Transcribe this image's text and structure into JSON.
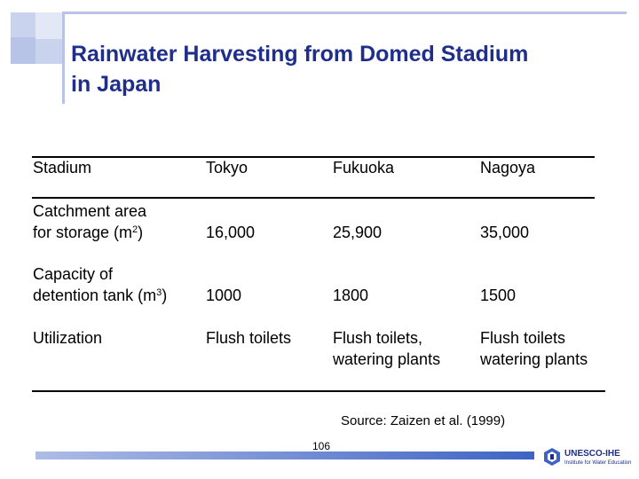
{
  "slide": {
    "title_line1": "Rainwater Harvesting from Domed Stadium",
    "title_line2": "in Japan"
  },
  "table": {
    "headers": [
      "Stadium",
      "Tokyo",
      "Fukuoka",
      "Nagoya"
    ],
    "rows": [
      {
        "label_line1": "Catchment area",
        "label_line2_prefix": "for storage (m",
        "label_line2_sup": "2",
        "label_line2_suffix": ")",
        "values": [
          "16,000",
          "25,900",
          "35,000"
        ]
      },
      {
        "label_line1": "Capacity of",
        "label_line2_prefix": "detention tank (m",
        "label_line2_sup": "3",
        "label_line2_suffix": ")",
        "values": [
          "1000",
          "1800",
          "1500"
        ]
      },
      {
        "label": "Utilization",
        "values_line1": [
          "Flush toilets",
          "Flush toilets,",
          "Flush toilets"
        ],
        "values_line2": [
          "",
          "watering plants",
          "watering plants"
        ]
      }
    ]
  },
  "source": "Source: Zaizen et al. (1999)",
  "page_number": "106",
  "logo": {
    "name": "UNESCO-IHE",
    "tagline": "Institute for Water Education"
  },
  "colors": {
    "title": "#1f2e8a",
    "accent": "#b9c3e6",
    "footer_bar": "#3e63c4"
  }
}
